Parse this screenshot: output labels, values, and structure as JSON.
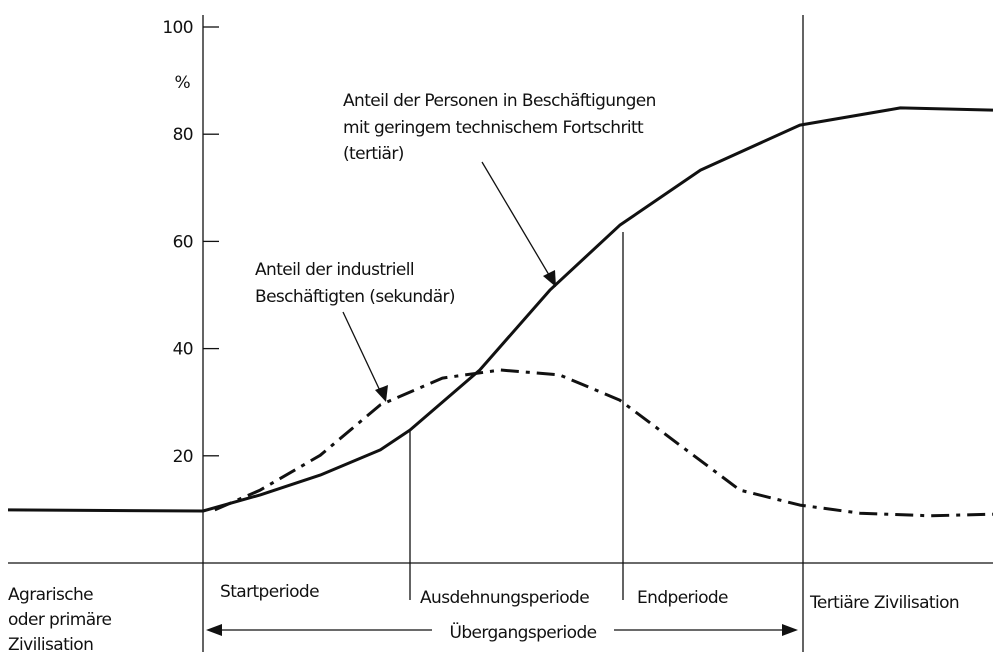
{
  "chart_data": {
    "type": "line",
    "ylabel": "%",
    "ylim": [
      0,
      100
    ],
    "yticks": [
      20,
      40,
      60,
      80,
      100
    ],
    "xlim": [
      0,
      100
    ],
    "series": [
      {
        "label": [
          "Anteil der Personen in Beschäftigungen",
          "mit geringem technischem Fortschritt",
          "(tertiär)"
        ],
        "color": "#111111",
        "style": "solid",
        "x": [
          0,
          19.8,
          25.6,
          31.7,
          37.8,
          40.8,
          47.9,
          55,
          62.1,
          70.3,
          80.4,
          90.6,
          100
        ],
        "values": [
          9.9,
          9.7,
          12.7,
          16.4,
          21.1,
          24.8,
          36,
          50.9,
          63,
          73.3,
          81.7,
          84.9,
          84.5
        ]
      },
      {
        "label": [
          "Anteil der industriell",
          "Beschäftigten (sekundär)"
        ],
        "color": "#111111",
        "style": "dash-dot",
        "x": [
          21,
          25.6,
          31.7,
          37.8,
          44.1,
          50,
          56,
          62.1,
          68.2,
          74.3,
          80.4,
          86.5,
          93.6,
          100
        ],
        "values": [
          9.9,
          13.6,
          20.1,
          29.5,
          34.5,
          36,
          35.1,
          30.4,
          22,
          13.6,
          10.8,
          9.3,
          8.8,
          9.1
        ]
      }
    ],
    "periods": {
      "agrarian": [
        "Agrarische",
        "oder primäre",
        "Zivilisation"
      ],
      "start": "Startperiode",
      "expansion": "Ausdehnungsperiode",
      "end": "Endperiode",
      "tertiary": "Tertiäre Zivilisation",
      "transition": "Übergangsperiode"
    }
  }
}
